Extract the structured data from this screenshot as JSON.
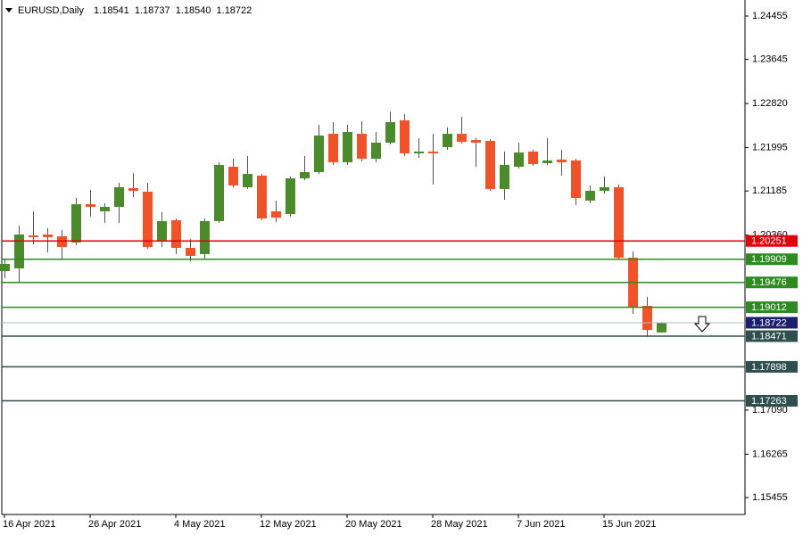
{
  "chart_data": {
    "type": "candlestick",
    "title": "EURUSD,Daily",
    "quote": [
      "1.18541",
      "1.18737",
      "1.18540",
      "1.18722"
    ],
    "categories": [
      "16 Apr 2021",
      null,
      null,
      null,
      null,
      null,
      "26 Apr 2021",
      null,
      null,
      null,
      null,
      null,
      "4 May 2021",
      null,
      null,
      null,
      null,
      null,
      "12 May 2021",
      null,
      null,
      null,
      null,
      null,
      "20 May 2021",
      null,
      null,
      null,
      null,
      null,
      "28 May 2021",
      null,
      null,
      null,
      null,
      null,
      "7 Jun 2021",
      null,
      null,
      null,
      null,
      null,
      "15 Jun 2021",
      null,
      null,
      null,
      null
    ],
    "open": [
      1.19688,
      1.19738,
      1.20355,
      1.20372,
      1.20338,
      1.20222,
      1.20938,
      1.20805,
      1.20888,
      1.21238,
      1.21172,
      1.20238,
      1.20638,
      1.20122,
      1.20005,
      1.20622,
      1.21638,
      1.21255,
      1.21472,
      1.20805,
      1.20755,
      1.21422,
      1.21538,
      1.22255,
      1.21722,
      1.22255,
      1.21788,
      1.22088,
      1.22505,
      1.21888,
      1.21922,
      1.22005,
      1.22255,
      1.22138,
      1.22122,
      1.21222,
      1.21638,
      1.21922,
      1.21705,
      1.21772,
      1.21755,
      1.21005,
      1.21188,
      1.21255,
      1.19938,
      1.19038,
      1.18541
    ],
    "high": [
      1.19922,
      1.20538,
      1.20805,
      1.20488,
      1.20455,
      1.21055,
      1.21205,
      1.20955,
      1.21338,
      1.21522,
      1.21338,
      1.20788,
      1.20672,
      1.20288,
      1.20672,
      1.21722,
      1.21788,
      1.21838,
      1.21505,
      1.21005,
      1.21455,
      1.21838,
      1.22422,
      1.22472,
      1.22422,
      1.22488,
      1.22288,
      1.22672,
      1.22622,
      1.22172,
      1.22255,
      1.22372,
      1.22572,
      1.22172,
      1.22155,
      1.21922,
      1.22088,
      1.21955,
      1.22172,
      1.21955,
      1.21788,
      1.21288,
      1.21455,
      1.21305,
      1.20055,
      1.19205,
      1.18737
    ],
    "low": [
      1.19555,
      1.19472,
      1.20188,
      1.20038,
      1.19922,
      1.20172,
      1.20705,
      1.20588,
      1.20588,
      1.21072,
      1.20105,
      1.20138,
      1.20005,
      1.19872,
      1.19922,
      1.20588,
      1.21255,
      1.21222,
      1.20638,
      1.20605,
      1.20705,
      1.21388,
      1.21505,
      1.21672,
      1.21672,
      1.21738,
      1.21722,
      1.22055,
      1.21838,
      1.21805,
      1.21305,
      1.21955,
      1.22072,
      1.21638,
      1.21188,
      1.21022,
      1.21605,
      1.21655,
      1.21672,
      1.21472,
      1.20922,
      1.20955,
      1.21138,
      1.19905,
      1.18888,
      1.18455,
      1.1854
    ],
    "close": [
      1.19822,
      1.20372,
      1.20322,
      1.20322,
      1.20138,
      1.20938,
      1.20888,
      1.20888,
      1.21255,
      1.21188,
      1.20138,
      1.20622,
      1.20122,
      1.19972,
      1.20622,
      1.21672,
      1.21288,
      1.21505,
      1.20672,
      1.20688,
      1.21422,
      1.21538,
      1.22222,
      1.21722,
      1.22288,
      1.21788,
      1.22088,
      1.22472,
      1.21888,
      1.21922,
      1.21888,
      1.22255,
      1.22105,
      1.22088,
      1.21222,
      1.21672,
      1.21905,
      1.21688,
      1.21755,
      1.21722,
      1.21055,
      1.21188,
      1.21255,
      1.19938,
      1.19005,
      1.18588,
      1.18722
    ],
    "up_color": "#4c8b2b",
    "down_color": "#f0522a",
    "ylim": [
      1.15138,
      1.24755
    ],
    "yticks": [
      1.24455,
      1.23645,
      {
        "value": 1.2282,
        "label": "1.22820"
      },
      1.21995,
      1.21185,
      {
        "value": 1.2036,
        "label": "1.20360"
      },
      {
        "value": 1.1709,
        "label": "1.17090"
      },
      1.16265,
      1.15455
    ],
    "levels": [
      {
        "value": 1.20251,
        "color": "#e0000b"
      },
      {
        "value": 1.19909,
        "color": "#2e8b22"
      },
      {
        "value": 1.19476,
        "color": "#2e8b22"
      },
      {
        "value": 1.19012,
        "color": "#2e8b22"
      },
      {
        "value": 1.18722,
        "color": "#1b1f6e",
        "line_color": "#b4bcc6"
      },
      {
        "value": 1.18471,
        "color": "#2f4f4f"
      },
      {
        "value": 1.17898,
        "color": "#2f4f4f"
      },
      {
        "value": 1.17263,
        "color": "#2f4f4f"
      }
    ]
  }
}
